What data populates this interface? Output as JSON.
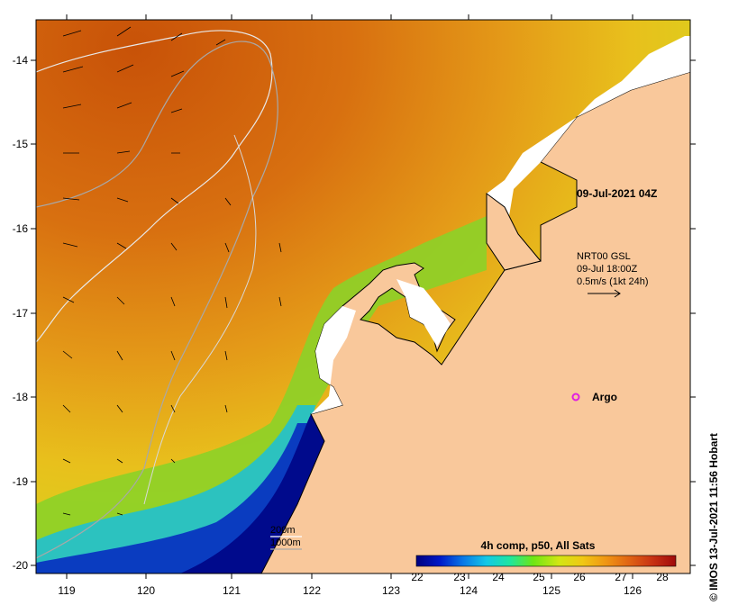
{
  "map": {
    "lon_ticks": [
      "119",
      "120",
      "121",
      "122",
      "123",
      "124",
      "125",
      "126"
    ],
    "lat_ticks": [
      "-14",
      "-15",
      "-16",
      "-17",
      "-18",
      "-19",
      "-20"
    ],
    "colors": {
      "land": "#f9c89b",
      "coast": "#000000",
      "ocean_hot": "#c8500a",
      "ocean_warm": "#e08a14",
      "ocean_mid": "#e8b41c",
      "ocean_cool": "#9ad21e",
      "ocean_cold": "#1e96d2",
      "ocean_coldest": "#000a8c"
    },
    "timestamp": "09-Jul-2021 04Z",
    "current_info": {
      "line1": "NRT00 GSL",
      "line2": "09-Jul 18:00Z",
      "line3": "0.5m/s (1kt 24h)"
    },
    "argo_label": "Argo",
    "argo_color": "#e020e0",
    "isobaths": {
      "line1": "200m",
      "line2": "1000m"
    },
    "colorbar": {
      "title": "4h comp, p50, All Sats",
      "ticks": [
        "22",
        "23",
        "24",
        "25",
        "26",
        "27",
        "28"
      ],
      "gradient": [
        "#00007f",
        "#0018c8",
        "#0a78e6",
        "#14c8e6",
        "#1ee6a0",
        "#6ee614",
        "#d2e614",
        "#f0c814",
        "#f09614",
        "#e06414",
        "#c83214",
        "#a00a0a"
      ]
    },
    "credit": "© IMOS 13-Jul-2021 11:56 Hobart"
  }
}
